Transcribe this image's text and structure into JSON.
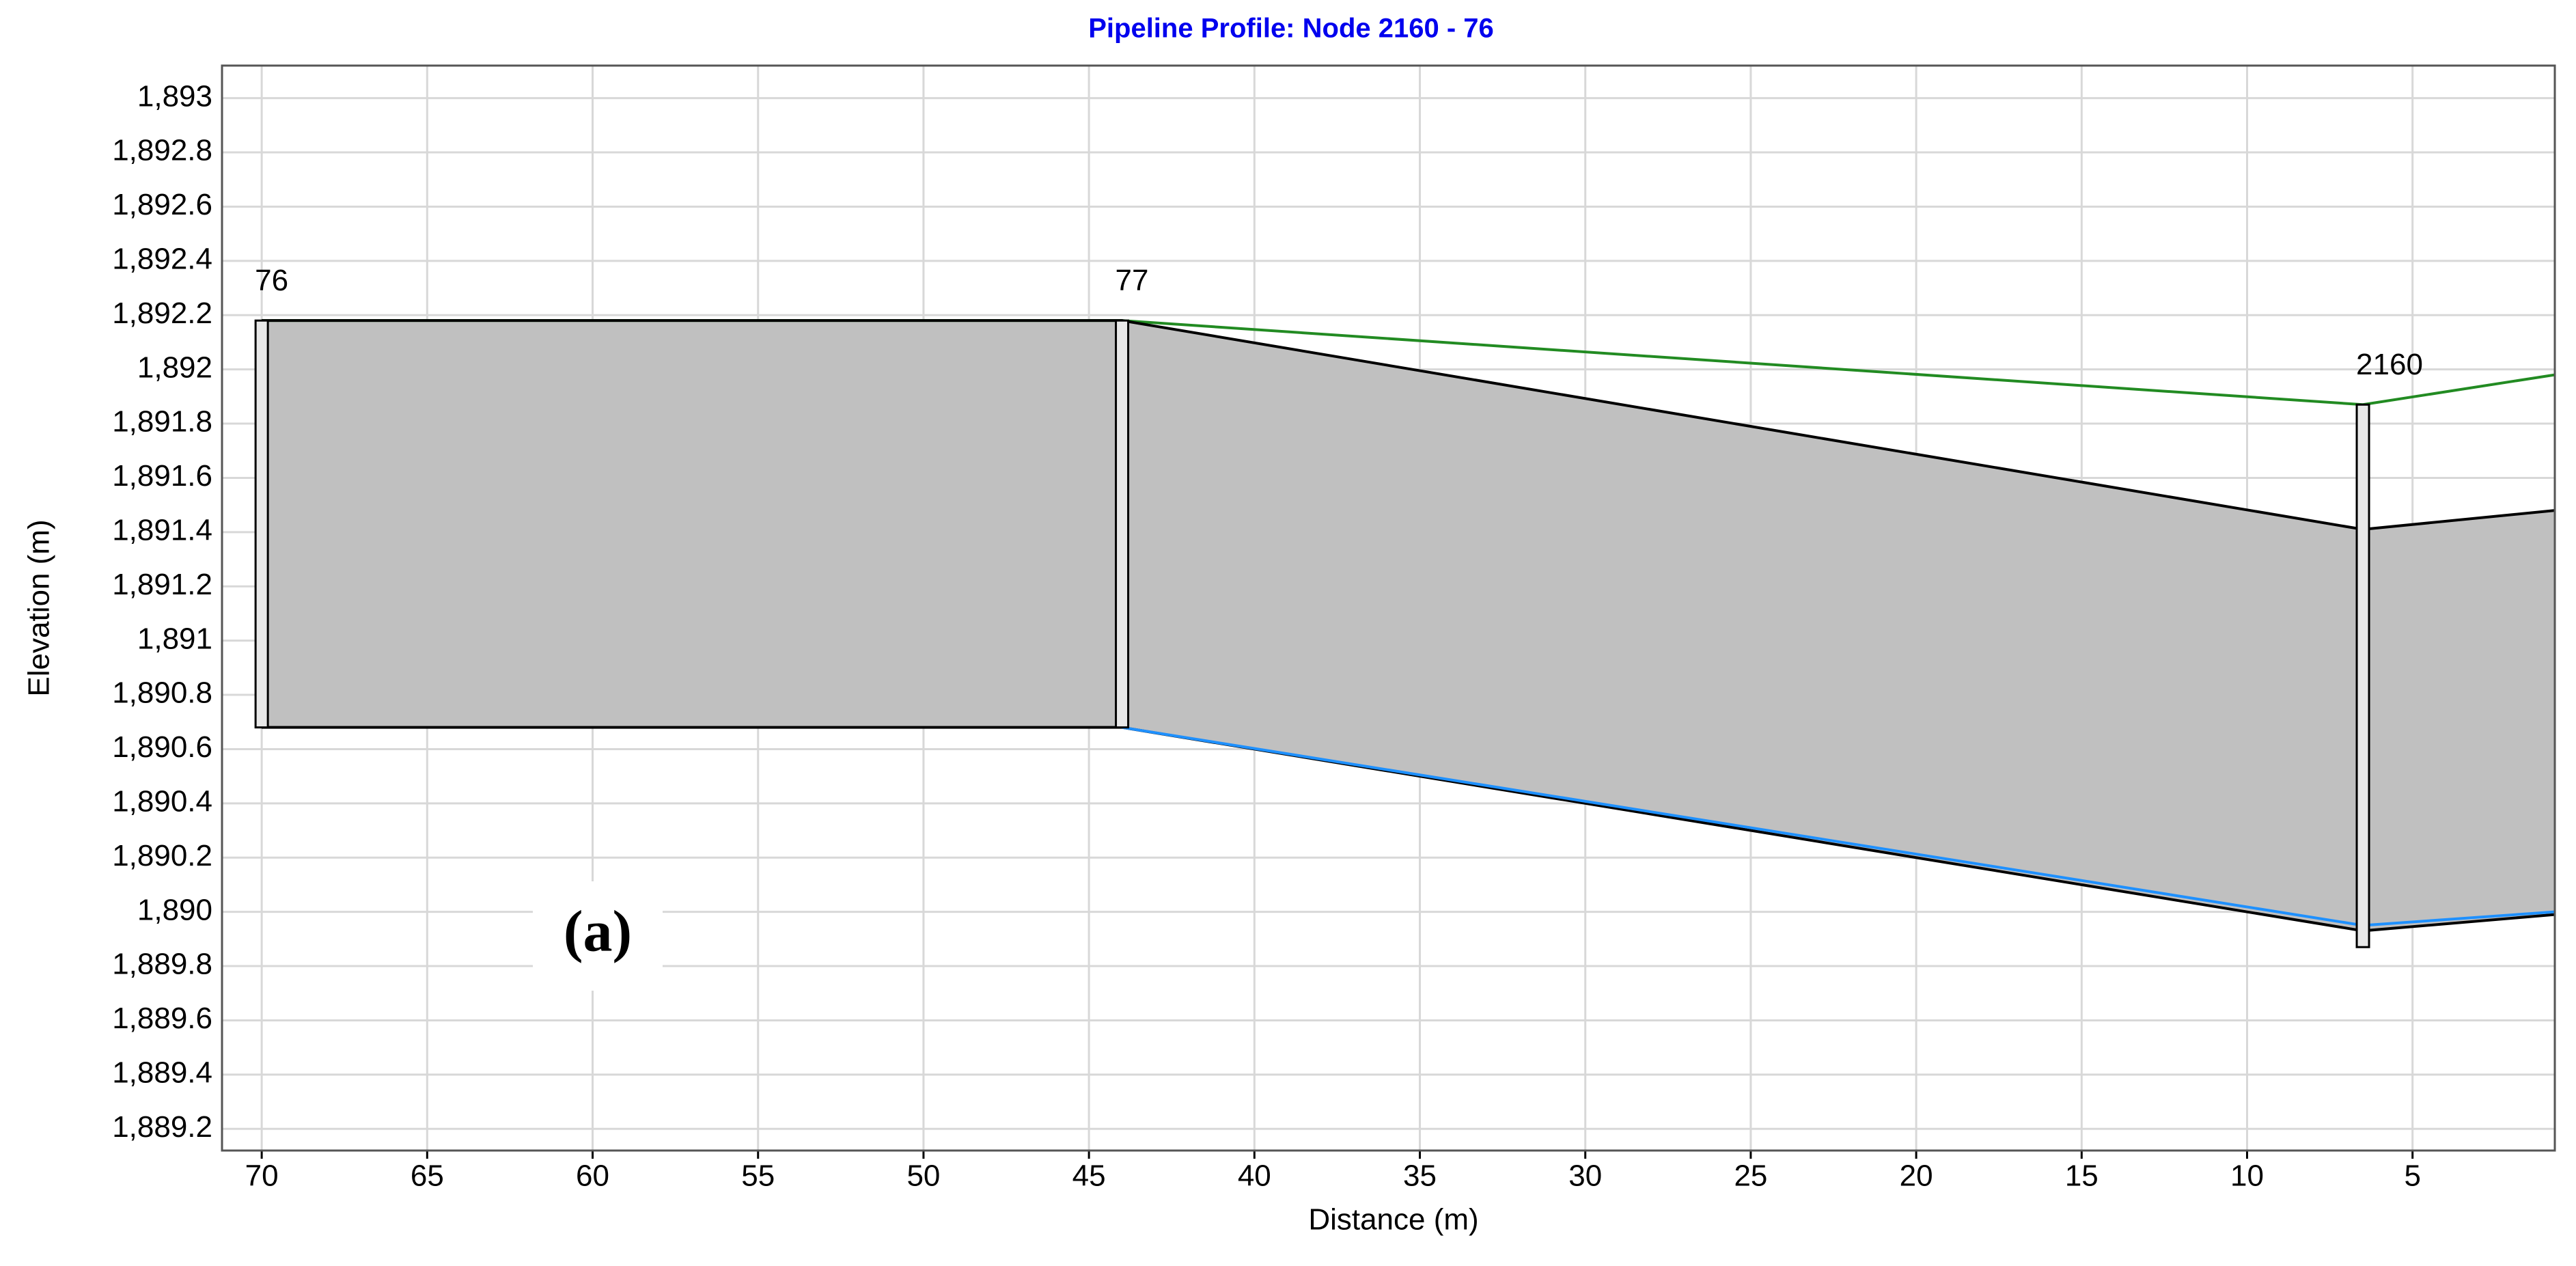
{
  "chart_data": {
    "type": "line",
    "title": "Pipeline Profile: Node 2160 - 76",
    "x_label": "Distance (m)",
    "y_label": "Elevation (m)",
    "annotation": "(a)",
    "x": [
      70,
      44,
      6.5,
      0.7
    ],
    "series": [
      {
        "color": "#228b22",
        "values": [
          1892.18,
          1892.18,
          1891.87,
          1891.98
        ]
      },
      {
        "color": "#000000",
        "values": [
          1892.18,
          1892.18,
          1891.41,
          1891.48
        ]
      },
      {
        "color": "#000000",
        "values": [
          1890.68,
          1890.68,
          1889.93,
          1889.99
        ]
      },
      {
        "color": "#1e90ff",
        "values": [
          null,
          1890.68,
          1889.95,
          1890.0
        ]
      }
    ],
    "nodes": [
      {
        "label": "76",
        "x": 70,
        "bottom": 1890.68,
        "top": 1892.18
      },
      {
        "label": "77",
        "x": 44,
        "bottom": 1890.68,
        "top": 1892.18
      },
      {
        "label": "2160",
        "x": 6.5,
        "bottom": 1889.87,
        "top": 1891.87
      }
    ],
    "xlim": [
      71.2,
      0.7
    ],
    "ylim": [
      1889.12,
      1893.12
    ],
    "xticks": [
      70,
      65,
      60,
      55,
      50,
      45,
      40,
      35,
      30,
      25,
      20,
      15,
      10,
      5
    ],
    "yticks": [
      {
        "value": 1889.2,
        "label": "1,889.2"
      },
      {
        "value": 1889.4,
        "label": "1,889.4"
      },
      {
        "value": 1889.6,
        "label": "1,889.6"
      },
      {
        "value": 1889.8,
        "label": "1,889.8"
      },
      {
        "value": 1890,
        "label": "1,890"
      },
      {
        "value": 1890.2,
        "label": "1,890.2"
      },
      {
        "value": 1890.4,
        "label": "1,890.4"
      },
      {
        "value": 1890.6,
        "label": "1,890.6"
      },
      {
        "value": 1890.8,
        "label": "1,890.8"
      },
      {
        "value": 1891,
        "label": "1,891"
      },
      {
        "value": 1891.2,
        "label": "1,891.2"
      },
      {
        "value": 1891.4,
        "label": "1,891.4"
      },
      {
        "value": 1891.6,
        "label": "1,891.6"
      },
      {
        "value": 1891.8,
        "label": "1,891.8"
      },
      {
        "value": 1892,
        "label": "1,892"
      },
      {
        "value": 1892.2,
        "label": "1,892.2"
      },
      {
        "value": 1892.4,
        "label": "1,892.4"
      },
      {
        "value": 1892.6,
        "label": "1,892.6"
      },
      {
        "value": 1892.8,
        "label": "1,892.8"
      },
      {
        "value": 1893,
        "label": "1,893"
      }
    ],
    "grid": true
  }
}
